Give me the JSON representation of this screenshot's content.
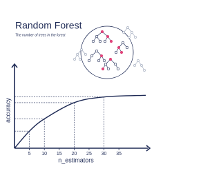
{
  "chart_data": {
    "type": "line",
    "title": "Random Forest",
    "subtitle": "The number of trees in the forest",
    "x_label": "n_estimators",
    "y_label": "accuracy",
    "x": [
      0,
      5,
      10,
      20,
      30,
      44
    ],
    "values": [
      0,
      21,
      36,
      56,
      63,
      65
    ],
    "color": "#1e2a55",
    "xlim": [
      0,
      44
    ],
    "xticks": [
      5,
      10,
      15,
      20,
      25,
      30,
      35
    ],
    "ylim": [
      0,
      100
    ]
  }
}
